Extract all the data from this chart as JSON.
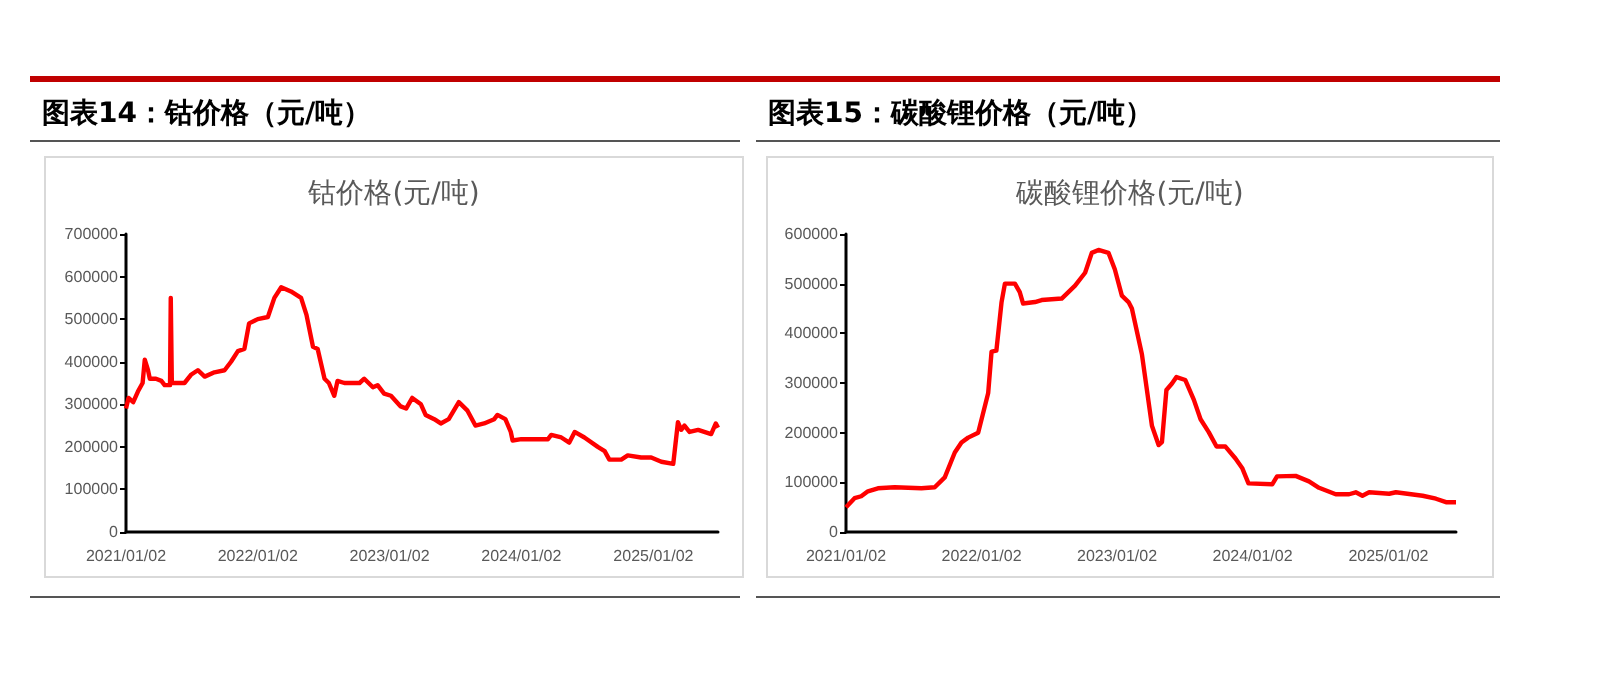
{
  "chart_data": [
    {
      "type": "line",
      "title": "图表14：钴价格（元/吨）",
      "subtitle": "钴价格(元/吨)",
      "color": "#ff0000",
      "grid": false,
      "marker": "none",
      "xlim": [
        "2021-01-02",
        "2025-06-30"
      ],
      "xticks": [
        {
          "value": "2021-01-02",
          "label": "2021/01/02"
        },
        {
          "value": "2022-01-02",
          "label": "2022/01/02"
        },
        {
          "value": "2023-01-02",
          "label": "2023/01/02"
        },
        {
          "value": "2024-01-02",
          "label": "2024/01/02"
        },
        {
          "value": "2025-01-02",
          "label": "2025/01/02"
        }
      ],
      "ylim": [
        0,
        700000
      ],
      "yticks": [
        0,
        100000,
        200000,
        300000,
        400000,
        500000,
        600000,
        700000
      ],
      "x": [
        "2021-01-02",
        "2021-01-09",
        "2021-01-22",
        "2021-02-04",
        "2021-02-17",
        "2021-02-23",
        "2021-03-04",
        "2021-03-09",
        "2021-03-26",
        "2021-04-10",
        "2021-04-19",
        "2021-05-04",
        "2021-05-06",
        "2021-05-09",
        "2021-06-13",
        "2021-07-02",
        "2021-07-20",
        "2021-08-08",
        "2021-09-04",
        "2021-10-02",
        "2021-10-20",
        "2021-11-08",
        "2021-11-26",
        "2021-12-09",
        "2022-01-02",
        "2022-01-30",
        "2022-02-17",
        "2022-03-08",
        "2022-04-04",
        "2022-05-02",
        "2022-05-17",
        "2022-06-04",
        "2022-06-17",
        "2022-07-06",
        "2022-07-18",
        "2022-08-02",
        "2022-08-11",
        "2022-08-30",
        "2022-10-11",
        "2022-10-24",
        "2022-11-17",
        "2022-11-30",
        "2022-12-18",
        "2023-01-06",
        "2023-02-02",
        "2023-02-17",
        "2023-03-06",
        "2023-03-30",
        "2023-04-12",
        "2023-05-06",
        "2023-05-24",
        "2023-06-15",
        "2023-07-13",
        "2023-08-06",
        "2023-08-28",
        "2023-09-21",
        "2023-10-19",
        "2023-10-28",
        "2023-11-19",
        "2023-12-04",
        "2023-12-09",
        "2024-01-02",
        "2024-03-16",
        "2024-03-25",
        "2024-04-22",
        "2024-05-14",
        "2024-05-29",
        "2024-06-25",
        "2024-08-01",
        "2024-08-20",
        "2024-09-02",
        "2024-10-05",
        "2024-10-23",
        "2024-11-29",
        "2024-12-27",
        "2025-01-24",
        "2025-02-26",
        "2025-03-11",
        "2025-03-20",
        "2025-03-29",
        "2025-04-12",
        "2025-05-06",
        "2025-06-11",
        "2025-06-24",
        "2025-06-30"
      ],
      "values": [
        290000,
        315000,
        305000,
        330000,
        350000,
        405000,
        380000,
        360000,
        360000,
        355000,
        345000,
        345000,
        550000,
        350000,
        350000,
        370000,
        380000,
        365000,
        375000,
        380000,
        400000,
        425000,
        430000,
        490000,
        500000,
        505000,
        550000,
        575000,
        565000,
        550000,
        510000,
        435000,
        430000,
        360000,
        350000,
        320000,
        355000,
        350000,
        350000,
        360000,
        340000,
        345000,
        325000,
        320000,
        295000,
        290000,
        315000,
        300000,
        275000,
        265000,
        255000,
        265000,
        305000,
        285000,
        250000,
        255000,
        265000,
        275000,
        265000,
        235000,
        215000,
        218000,
        218000,
        228000,
        222000,
        210000,
        235000,
        222000,
        200000,
        190000,
        170000,
        170000,
        180000,
        175000,
        175000,
        165000,
        160000,
        258000,
        240000,
        250000,
        235000,
        240000,
        230000,
        255000,
        245000
      ]
    },
    {
      "type": "line",
      "title": "图表15：碳酸锂价格（元/吨）",
      "subtitle": "碳酸锂价格(元/吨)",
      "color": "#ff0000",
      "grid": false,
      "marker": "none",
      "xlim": [
        "2021-01-02",
        "2025-07-03"
      ],
      "xticks": [
        {
          "value": "2021-01-02",
          "label": "2021/01/02"
        },
        {
          "value": "2022-01-02",
          "label": "2022/01/02"
        },
        {
          "value": "2023-01-02",
          "label": "2023/01/02"
        },
        {
          "value": "2024-01-02",
          "label": "2024/01/02"
        },
        {
          "value": "2025-01-02",
          "label": "2025/01/02"
        }
      ],
      "ylim": [
        0,
        600000
      ],
      "yticks": [
        0,
        100000,
        200000,
        300000,
        400000,
        500000,
        600000
      ],
      "x": [
        "2021-01-02",
        "2021-01-25",
        "2021-02-12",
        "2021-03-02",
        "2021-03-29",
        "2021-05-13",
        "2021-07-24",
        "2021-08-29",
        "2021-09-25",
        "2021-10-22",
        "2021-11-09",
        "2021-11-27",
        "2021-12-24",
        "2022-01-20",
        "2022-01-29",
        "2022-02-11",
        "2022-02-25",
        "2022-03-06",
        "2022-04-02",
        "2022-04-15",
        "2022-04-24",
        "2022-05-26",
        "2022-06-13",
        "2022-08-06",
        "2022-09-11",
        "2022-10-08",
        "2022-10-26",
        "2022-11-13",
        "2022-12-10",
        "2022-12-27",
        "2023-01-15",
        "2023-02-02",
        "2023-02-11",
        "2023-03-10",
        "2023-04-06",
        "2023-04-24",
        "2023-05-03",
        "2023-05-15",
        "2023-05-30",
        "2023-06-11",
        "2023-07-05",
        "2023-07-28",
        "2023-08-15",
        "2023-09-06",
        "2023-09-27",
        "2023-10-21",
        "2023-11-17",
        "2023-12-05",
        "2023-12-22",
        "2024-02-24",
        "2024-03-08",
        "2024-04-27",
        "2024-06-02",
        "2024-06-29",
        "2024-08-13",
        "2024-09-18",
        "2024-10-06",
        "2024-10-24",
        "2024-11-11",
        "2025-01-04",
        "2025-01-22",
        "2025-04-04",
        "2025-05-10",
        "2025-06-06",
        "2025-07-03"
      ],
      "values": [
        50000,
        68000,
        72000,
        82000,
        88000,
        90000,
        88000,
        90000,
        110000,
        160000,
        180000,
        190000,
        200000,
        280000,
        363000,
        365000,
        463000,
        500000,
        500000,
        483000,
        460000,
        463000,
        467000,
        470000,
        496000,
        522000,
        562000,
        568000,
        562000,
        529000,
        476000,
        463000,
        450000,
        358000,
        214000,
        175000,
        181000,
        286000,
        299000,
        312000,
        306000,
        266000,
        227000,
        201000,
        172000,
        172000,
        148000,
        129000,
        98000,
        96000,
        112000,
        113000,
        102000,
        89000,
        76000,
        76000,
        80000,
        73000,
        80000,
        77000,
        80000,
        73000,
        67000,
        60000,
        60000
      ]
    }
  ]
}
